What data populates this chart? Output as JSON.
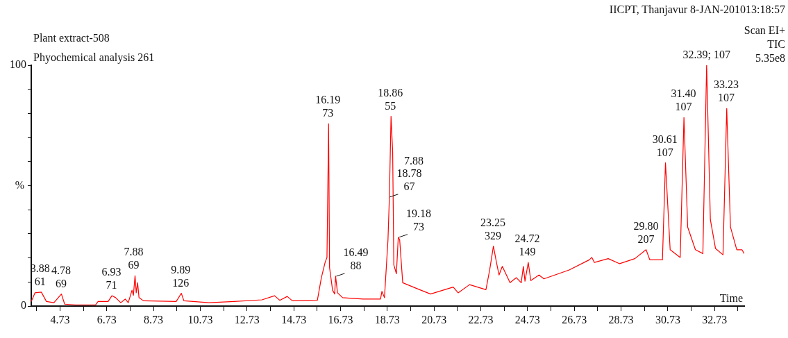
{
  "chart_data": {
    "type": "line",
    "title": "Plant extract-508",
    "subtitle": "Phyochemical analysis 261",
    "xlabel": "Time",
    "ylabel": "%",
    "annotations": [
      "IICPT, Thanjavur 8-JAN-201013:18:57",
      "Scan EI+\nTIC\n5.35e8",
      {
        "text": "3.88\n61",
        "x": 3.88,
        "y": 5.8
      },
      {
        "text": "4.78\n69",
        "x": 4.78,
        "y": 5.0
      },
      {
        "text": "6.93\n71",
        "x": 6.93,
        "y": 4.3
      },
      {
        "text": "7.88\n69",
        "x": 7.88,
        "y": 12.6
      },
      {
        "text": "9.89\n126",
        "x": 9.89,
        "y": 5.3
      },
      {
        "text": "16.19\n73",
        "x": 16.19,
        "y": 75.7
      },
      {
        "text": "16.49\n88",
        "x": 16.49,
        "y": 12.4
      },
      {
        "text": "18.86\n55",
        "x": 18.86,
        "y": 78.8
      },
      {
        "text": "18.78\n67",
        "x": 18.78,
        "y": 45.3
      },
      "7.88",
      {
        "text": "19.18\n73",
        "x": 19.18,
        "y": 28.6
      },
      {
        "text": "23.25\n329",
        "x": 23.25,
        "y": 24.9
      },
      {
        "text": "24.72\n149",
        "x": 24.72,
        "y": 18.1
      },
      {
        "text": "29.80\n207",
        "x": 29.8,
        "y": 23.4
      },
      {
        "text": "30.61\n107",
        "x": 30.61,
        "y": 59.5
      },
      {
        "text": "31.40\n107",
        "x": 31.4,
        "y": 78.3
      },
      {
        "text": "32.39; 107",
        "x": 32.39,
        "y": 100
      },
      {
        "text": "33.23\n107",
        "x": 33.23,
        "y": 82
      }
    ],
    "xlim": [
      3.5,
      34.0
    ],
    "xticks": [
      {
        "value": 3.73,
        "label": null
      },
      4.73,
      {
        "value": 5.73,
        "label": null
      },
      6.73,
      {
        "value": 7.73,
        "label": null
      },
      8.73,
      {
        "value": 9.73,
        "label": null
      },
      10.73,
      {
        "value": 11.73,
        "label": null
      },
      12.73,
      {
        "value": 13.73,
        "label": null
      },
      14.73,
      {
        "value": 15.73,
        "label": null
      },
      16.73,
      {
        "value": 17.73,
        "label": null
      },
      18.73,
      {
        "value": 19.73,
        "label": null
      },
      20.73,
      {
        "value": 21.73,
        "label": null
      },
      22.73,
      {
        "value": 23.73,
        "label": null
      },
      24.73,
      {
        "value": 25.73,
        "label": null
      },
      26.73,
      {
        "value": 27.73,
        "label": null
      },
      28.73,
      {
        "value": 29.73,
        "label": null
      },
      30.73,
      {
        "value": 31.73,
        "label": null
      },
      32.73,
      {
        "value": 33.73,
        "label": null
      }
    ],
    "ylim": [
      0,
      100
    ],
    "yticks": [
      0,
      {
        "value": 10,
        "label": null
      },
      {
        "value": 20,
        "label": null
      },
      {
        "value": 30,
        "label": null
      },
      {
        "value": 40,
        "label": null
      },
      {
        "value": 50,
        "label": null
      },
      {
        "value": 60,
        "label": null
      },
      {
        "value": 70,
        "label": null
      },
      {
        "value": 80,
        "label": null
      },
      {
        "value": 90,
        "label": null
      },
      100
    ],
    "grid": false,
    "legend": false,
    "marker": "none",
    "line_style": "solid",
    "series": [
      {
        "color": "#ff0000",
        "x": [
          3.5,
          3.66,
          3.93,
          4.15,
          4.47,
          4.79,
          4.93,
          5.39,
          6.25,
          6.36,
          6.79,
          6.95,
          7.11,
          7.33,
          7.52,
          7.65,
          7.81,
          7.87,
          7.94,
          7.99,
          8.05,
          8.11,
          8.3,
          9.7,
          9.92,
          10.03,
          11.11,
          12.18,
          13.37,
          13.91,
          14.13,
          14.45,
          14.67,
          15.74,
          15.91,
          16.07,
          16.15,
          16.22,
          16.26,
          16.39,
          16.48,
          16.52,
          16.6,
          16.82,
          17.69,
          18.44,
          18.5,
          18.61,
          18.76,
          18.82,
          18.89,
          18.96,
          19.01,
          19.12,
          19.2,
          19.26,
          19.39,
          20.04,
          20.58,
          21.55,
          21.76,
          22.25,
          22.95,
          23.11,
          23.27,
          23.4,
          23.51,
          23.65,
          23.98,
          24.25,
          24.46,
          24.55,
          24.62,
          24.76,
          24.87,
          25.22,
          25.43,
          26.51,
          27.37,
          27.48,
          27.59,
          28.18,
          28.67,
          29.32,
          29.8,
          29.96,
          30.5,
          30.63,
          30.83,
          31.26,
          31.42,
          31.58,
          31.91,
          32.23,
          32.39,
          32.55,
          32.77,
          33.09,
          33.25,
          33.41,
          33.68,
          33.9,
          34.0
        ],
        "values": [
          1.9,
          5.5,
          5.8,
          1.9,
          1.4,
          5.0,
          0.8,
          0.5,
          0.5,
          1.9,
          1.9,
          4.3,
          3.5,
          1.4,
          2.9,
          1.4,
          6.6,
          4.5,
          12.6,
          5.5,
          9.7,
          3.5,
          2.2,
          1.9,
          5.3,
          2.2,
          1.4,
          1.9,
          2.6,
          4.3,
          2.4,
          4.0,
          2.2,
          2.4,
          11.8,
          18.1,
          20.2,
          75.7,
          16.0,
          6.6,
          5.0,
          12.4,
          5.5,
          3.5,
          2.9,
          2.9,
          6.1,
          3.5,
          27.5,
          45.3,
          78.8,
          64.2,
          17.1,
          13.4,
          28.6,
          27.5,
          9.7,
          7.1,
          5.0,
          7.9,
          5.5,
          8.9,
          6.8,
          15.0,
          24.9,
          18.1,
          12.9,
          16.5,
          9.7,
          11.8,
          9.7,
          16.5,
          10.3,
          18.1,
          10.6,
          12.9,
          11.3,
          15.0,
          19.2,
          20.2,
          18.1,
          19.7,
          17.6,
          19.7,
          23.4,
          19.2,
          19.2,
          59.5,
          23.4,
          20.2,
          78.3,
          32.8,
          23.4,
          21.8,
          100,
          35.9,
          23.9,
          21.3,
          82.0,
          32.8,
          23.4,
          23.4,
          21.8
        ]
      }
    ]
  }
}
